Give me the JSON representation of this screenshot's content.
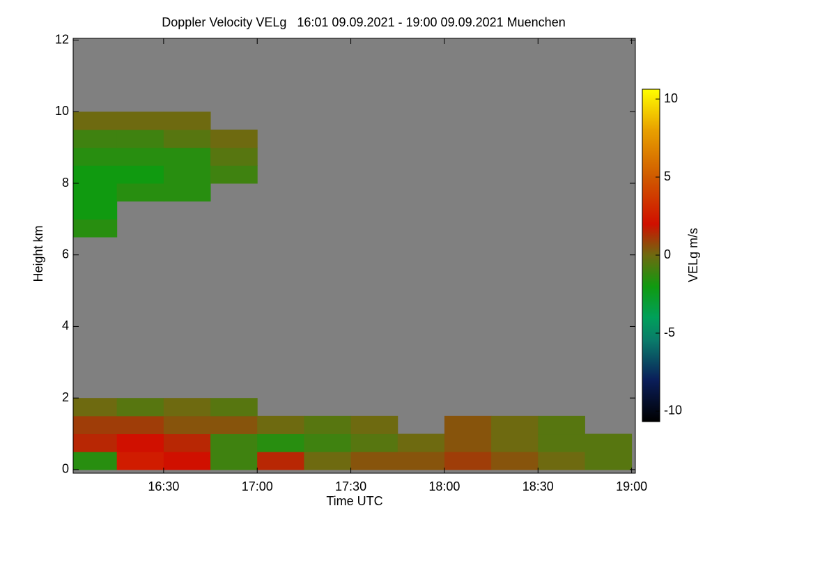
{
  "chart_data": {
    "type": "heatmap",
    "title": "Doppler Velocity VELg   16:01 09.09.2021 - 19:00 09.09.2021 Muenchen",
    "x_label": "Time UTC",
    "y_label": "Height km",
    "colorbar_label": "VELg m/s",
    "background": "#808080",
    "x": [
      16.125,
      16.375,
      16.625,
      16.875,
      17.125,
      17.375,
      17.625,
      17.875,
      18.125,
      18.375,
      18.625,
      18.875
    ],
    "y": [
      0.25,
      0.75,
      1.25,
      1.75,
      2.25,
      2.75,
      3.25,
      3.75,
      4.25,
      4.75,
      5.25,
      5.75,
      6.25,
      6.75,
      7.25,
      7.75,
      8.25,
      8.75,
      9.25,
      9.75,
      10.25,
      10.75,
      11.25,
      11.75
    ],
    "z": [
      [
        -1.5,
        2.5,
        2,
        -1,
        1.5,
        0,
        0.5,
        0.5,
        1,
        0.5,
        0,
        -0.5
      ],
      [
        1.5,
        2,
        1.5,
        -1,
        -1.5,
        -1,
        -0.5,
        0,
        0.5,
        0,
        -0.5,
        -0.5
      ],
      [
        1,
        1,
        0.5,
        0.5,
        0,
        -0.5,
        0,
        null,
        0.5,
        0,
        -0.5,
        null
      ],
      [
        0,
        -0.5,
        0,
        -0.5,
        null,
        null,
        null,
        null,
        null,
        null,
        null,
        null
      ],
      [
        null,
        null,
        null,
        null,
        null,
        null,
        null,
        null,
        null,
        null,
        null,
        null
      ],
      [
        null,
        null,
        null,
        null,
        null,
        null,
        null,
        null,
        null,
        null,
        null,
        null
      ],
      [
        null,
        null,
        null,
        null,
        null,
        null,
        null,
        null,
        null,
        null,
        null,
        null
      ],
      [
        null,
        null,
        null,
        null,
        null,
        null,
        null,
        null,
        null,
        null,
        null,
        null
      ],
      [
        null,
        null,
        null,
        null,
        null,
        null,
        null,
        null,
        null,
        null,
        null,
        null
      ],
      [
        null,
        null,
        null,
        null,
        null,
        null,
        null,
        null,
        null,
        null,
        null,
        null
      ],
      [
        null,
        null,
        null,
        null,
        null,
        null,
        null,
        null,
        null,
        null,
        null,
        null
      ],
      [
        null,
        null,
        null,
        null,
        null,
        null,
        null,
        null,
        null,
        null,
        null,
        null
      ],
      [
        null,
        null,
        null,
        null,
        null,
        null,
        null,
        null,
        null,
        null,
        null,
        null
      ],
      [
        -1.5,
        null,
        null,
        null,
        null,
        null,
        null,
        null,
        null,
        null,
        null,
        null
      ],
      [
        -2,
        null,
        null,
        null,
        null,
        null,
        null,
        null,
        null,
        null,
        null,
        null
      ],
      [
        -2,
        -1.5,
        -1.5,
        null,
        null,
        null,
        null,
        null,
        null,
        null,
        null,
        null
      ],
      [
        -2,
        -2,
        -1.5,
        -1,
        null,
        null,
        null,
        null,
        null,
        null,
        null,
        null
      ],
      [
        -1.5,
        -1.5,
        -1.5,
        -0.5,
        null,
        null,
        null,
        null,
        null,
        null,
        null,
        null
      ],
      [
        -1,
        -1,
        -0.5,
        0,
        null,
        null,
        null,
        null,
        null,
        null,
        null,
        null
      ],
      [
        0,
        0,
        0,
        null,
        null,
        null,
        null,
        null,
        null,
        null,
        null,
        null
      ],
      [
        null,
        null,
        null,
        null,
        null,
        null,
        null,
        null,
        null,
        null,
        null,
        null
      ],
      [
        null,
        null,
        null,
        null,
        null,
        null,
        null,
        null,
        null,
        null,
        null,
        null
      ],
      [
        null,
        null,
        null,
        null,
        null,
        null,
        null,
        null,
        null,
        null,
        null,
        null
      ],
      [
        null,
        null,
        null,
        null,
        null,
        null,
        null,
        null,
        null,
        null,
        null,
        null
      ]
    ],
    "xlim": [
      16.0167,
      19.02
    ],
    "xticks": [
      {
        "value": 16.5,
        "label": "16:30"
      },
      {
        "value": 17,
        "label": "17:00"
      },
      {
        "value": 17.5,
        "label": "17:30"
      },
      {
        "value": 18,
        "label": "18:00"
      },
      {
        "value": 18.5,
        "label": "18:30"
      },
      {
        "value": 19,
        "label": "19:00"
      }
    ],
    "ylim": [
      -0.1,
      12.05
    ],
    "yticks": [
      0,
      2,
      4,
      6,
      8,
      10,
      12
    ],
    "clim": [
      -10.67,
      10.63
    ],
    "cticks": [
      -10,
      -5,
      0,
      5,
      10
    ],
    "colormap": [
      {
        "value": -10.67,
        "color": "#000000"
      },
      {
        "value": -8,
        "color": "#0a1e5a"
      },
      {
        "value": -5.5,
        "color": "#0a7a6a"
      },
      {
        "value": -4,
        "color": "#00a05a"
      },
      {
        "value": -2,
        "color": "#109a10"
      },
      {
        "value": 0,
        "color": "#6e6a10"
      },
      {
        "value": 2,
        "color": "#d01000"
      },
      {
        "value": 5,
        "color": "#d05a00"
      },
      {
        "value": 8,
        "color": "#e8a000"
      },
      {
        "value": 10.63,
        "color": "#ffff00"
      }
    ]
  }
}
